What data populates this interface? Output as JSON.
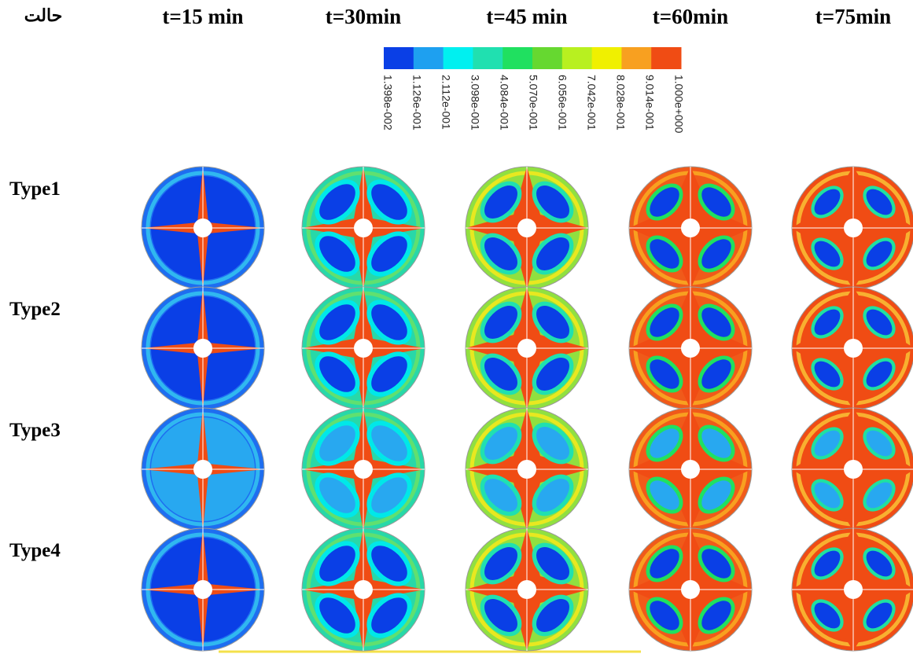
{
  "corner_label": "حالت",
  "columns": [
    "t=15 min",
    "t=30min",
    "t=45 min",
    "t=60min",
    "t=75min"
  ],
  "rows": [
    "Type1",
    "Type2",
    "Type3",
    "Type4"
  ],
  "colorbar": {
    "colors": [
      "#0a3fe6",
      "#1ea0f0",
      "#00f0f0",
      "#20e0b0",
      "#20e060",
      "#66d830",
      "#b8f020",
      "#f0f000",
      "#f8a020",
      "#f04c14"
    ],
    "labels": [
      "1.398e-002",
      "1.126e-001",
      "2.112e-001",
      "3.098e-001",
      "4.084e-001",
      "5.070e-001",
      "6.056e-001",
      "7.042e-001",
      "8.028e-001",
      "9.014e-001",
      "1.000e+000"
    ]
  }
}
